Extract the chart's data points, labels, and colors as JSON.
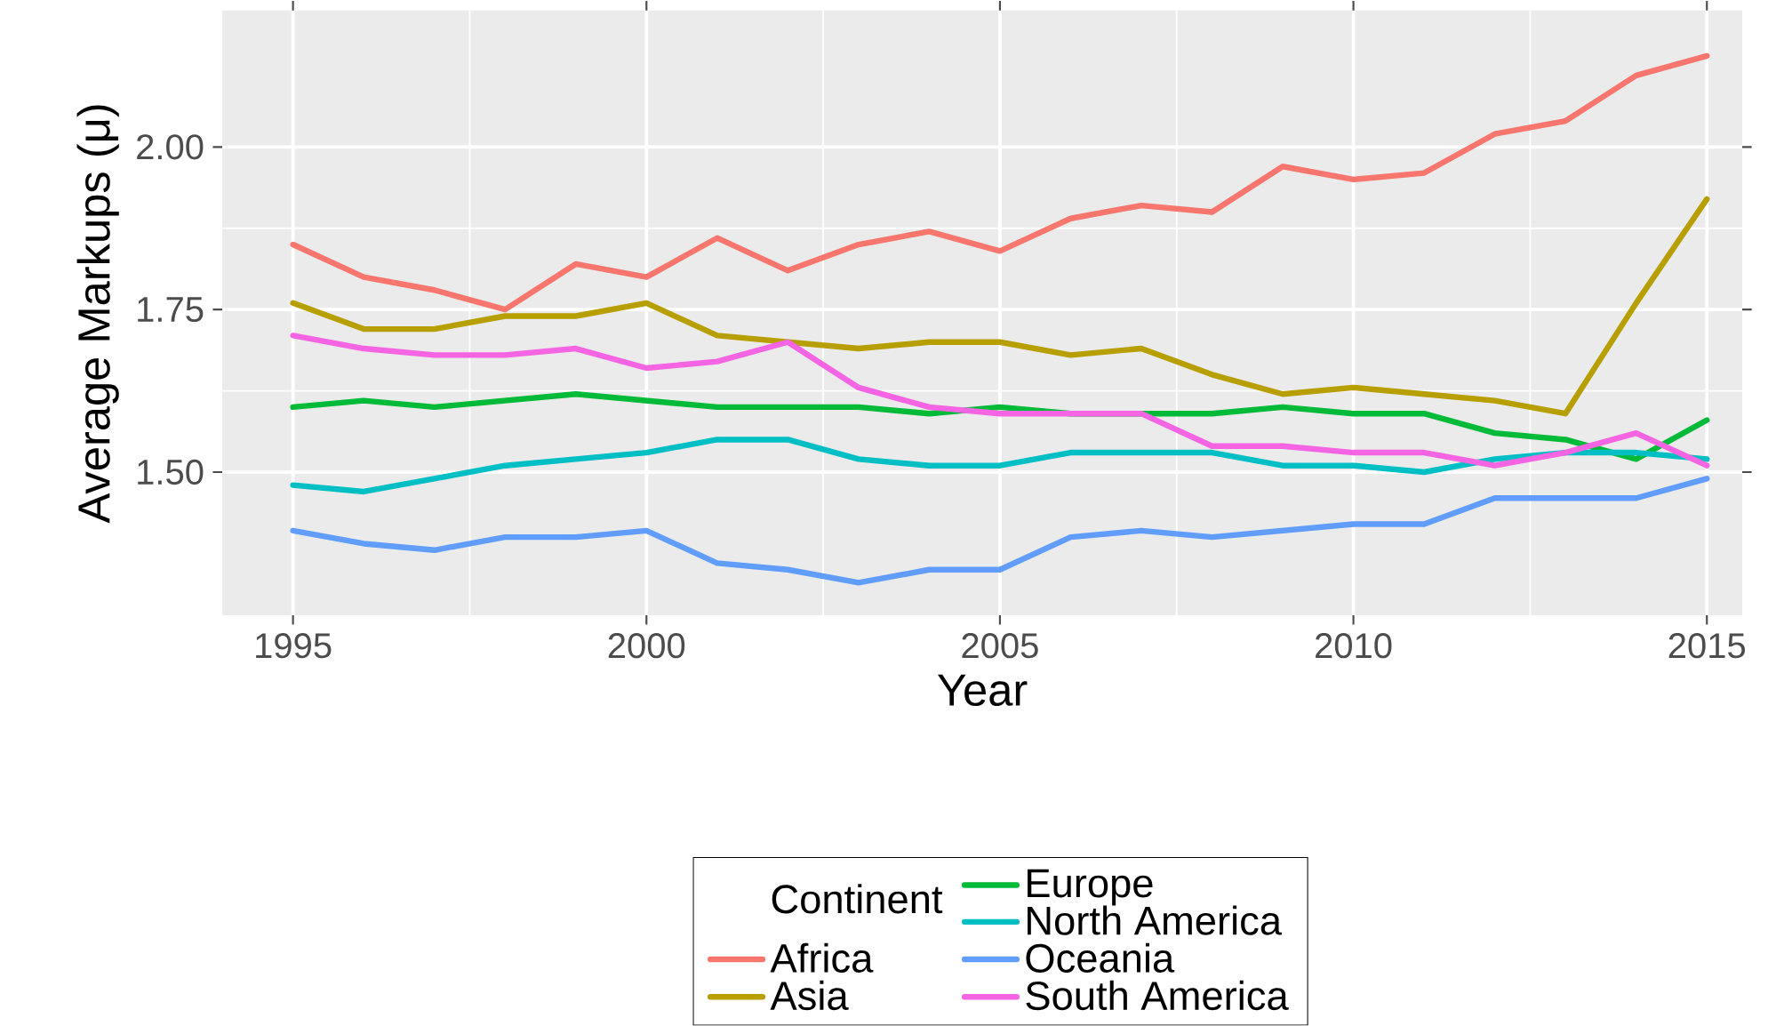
{
  "chart_data": {
    "type": "line",
    "xlabel": "Year",
    "ylabel": "Average Markups (μ)",
    "legend_title": "Continent",
    "x": [
      1995,
      1996,
      1997,
      1998,
      1999,
      2000,
      2001,
      2002,
      2003,
      2004,
      2005,
      2006,
      2007,
      2008,
      2009,
      2010,
      2011,
      2012,
      2013,
      2014,
      2015
    ],
    "series": [
      {
        "name": "Africa",
        "color": "#f8766d",
        "values": [
          1.85,
          1.8,
          1.78,
          1.75,
          1.82,
          1.8,
          1.86,
          1.81,
          1.85,
          1.87,
          1.84,
          1.89,
          1.91,
          1.9,
          1.97,
          1.95,
          1.96,
          2.02,
          2.04,
          2.11,
          2.14
        ]
      },
      {
        "name": "Asia",
        "color": "#b79f00",
        "values": [
          1.76,
          1.72,
          1.72,
          1.74,
          1.74,
          1.76,
          1.71,
          1.7,
          1.69,
          1.7,
          1.7,
          1.68,
          1.69,
          1.65,
          1.62,
          1.63,
          1.62,
          1.61,
          1.59,
          1.76,
          1.92
        ]
      },
      {
        "name": "Europe",
        "color": "#00ba38",
        "values": [
          1.6,
          1.61,
          1.6,
          1.61,
          1.62,
          1.61,
          1.6,
          1.6,
          1.6,
          1.59,
          1.6,
          1.59,
          1.59,
          1.59,
          1.6,
          1.59,
          1.59,
          1.56,
          1.55,
          1.52,
          1.58
        ]
      },
      {
        "name": "North America",
        "color": "#00bfc4",
        "values": [
          1.48,
          1.47,
          1.49,
          1.51,
          1.52,
          1.53,
          1.55,
          1.55,
          1.52,
          1.51,
          1.51,
          1.53,
          1.53,
          1.53,
          1.51,
          1.51,
          1.5,
          1.52,
          1.53,
          1.53,
          1.52
        ]
      },
      {
        "name": "Oceania",
        "color": "#619cff",
        "values": [
          1.41,
          1.39,
          1.38,
          1.4,
          1.4,
          1.41,
          1.36,
          1.35,
          1.33,
          1.35,
          1.35,
          1.4,
          1.41,
          1.4,
          1.41,
          1.42,
          1.42,
          1.46,
          1.46,
          1.46,
          1.49
        ]
      },
      {
        "name": "South America",
        "color": "#f564e3",
        "values": [
          1.71,
          1.69,
          1.68,
          1.68,
          1.69,
          1.66,
          1.67,
          1.7,
          1.63,
          1.6,
          1.59,
          1.59,
          1.59,
          1.54,
          1.54,
          1.53,
          1.53,
          1.51,
          1.53,
          1.56,
          1.51
        ]
      }
    ],
    "xlim": [
      1994,
      2015.5
    ],
    "ylim": [
      1.28,
      2.21
    ],
    "xticks": [
      1995,
      2000,
      2005,
      2010,
      2015
    ],
    "yticks": [
      {
        "value": 1.5,
        "label": "1.50"
      },
      {
        "value": 1.75,
        "label": "1.75"
      },
      {
        "value": 2.0,
        "label": "2.00"
      }
    ],
    "grid": true,
    "legend": "bottom",
    "line_style": "solid"
  }
}
